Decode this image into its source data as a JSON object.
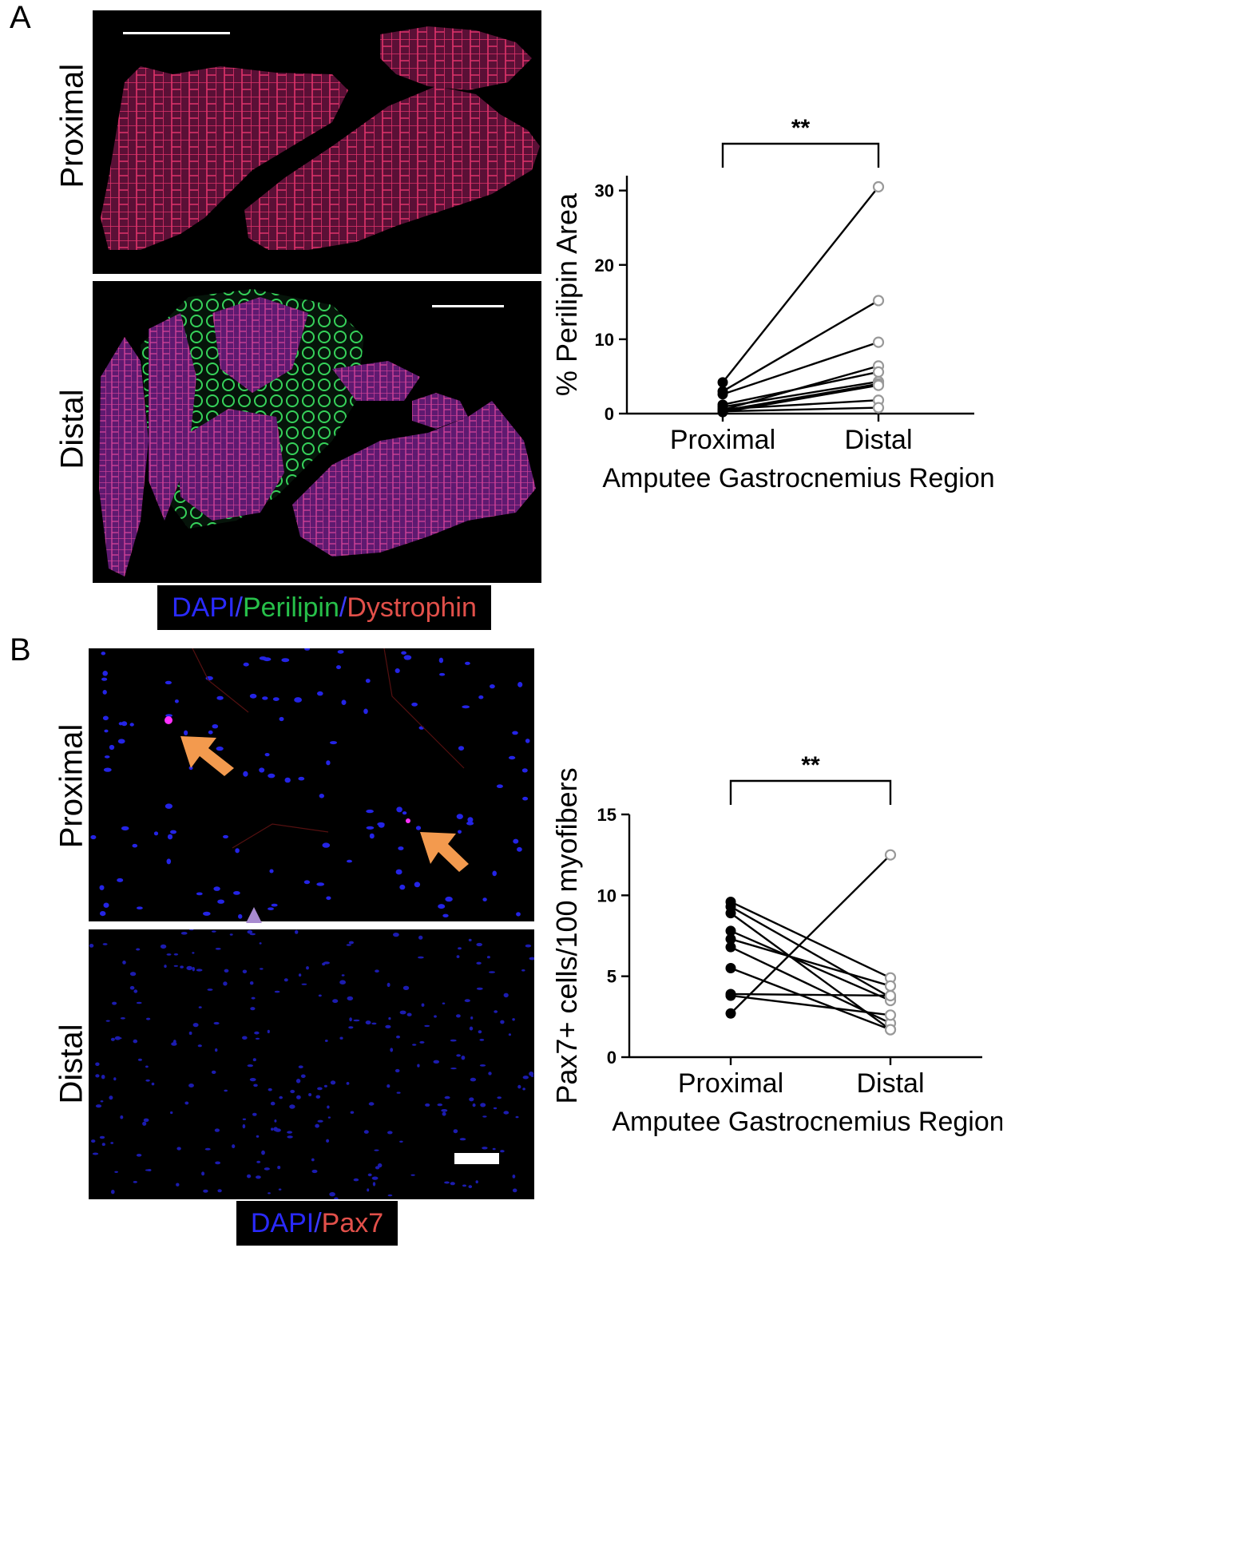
{
  "panels": {
    "a": {
      "letter": "A",
      "rows": [
        "Proximal",
        "Distal"
      ],
      "legend": [
        {
          "text": "DAPI",
          "color": "#2a2aff"
        },
        {
          "text": "/",
          "color": "#3b3bff"
        },
        {
          "text": "Perilipin",
          "color": "#27c04a"
        },
        {
          "text": "/",
          "color": "#3b3bff"
        },
        {
          "text": "Dystrophin",
          "color": "#e2504a"
        }
      ]
    },
    "b": {
      "letter": "B",
      "rows": [
        "Proximal",
        "Distal"
      ],
      "legend": [
        {
          "text": "DAPI",
          "color": "#2a2aff"
        },
        {
          "text": "/",
          "color": "#3b3bff"
        },
        {
          "text": "Pax7",
          "color": "#e2504a"
        }
      ]
    }
  },
  "chart_data": [
    {
      "type": "line",
      "ylabel": "% Perilipin Area",
      "xlabel": "Amputee Gastrocnemius Region",
      "categories": [
        "Proximal",
        "Distal"
      ],
      "ylim": [
        0,
        32
      ],
      "yticks": [
        "0",
        "10",
        "20",
        "30"
      ],
      "significance": "**",
      "proximal_marker": "filled",
      "distal_marker": "open",
      "pairs": [
        [
          4.2,
          30.5
        ],
        [
          3.0,
          15.2
        ],
        [
          2.6,
          9.6
        ],
        [
          0.5,
          6.4
        ],
        [
          1.2,
          5.6
        ],
        [
          0.9,
          4.3
        ],
        [
          0.4,
          4.0
        ],
        [
          0.2,
          3.8
        ],
        [
          0.6,
          1.8
        ],
        [
          0.3,
          0.8
        ]
      ]
    },
    {
      "type": "line",
      "ylabel": "Pax7+ cells/100 myofibers",
      "xlabel": "Amputee Gastrocnemius Region",
      "categories": [
        "Proximal",
        "Distal"
      ],
      "ylim": [
        0,
        15
      ],
      "yticks": [
        "0",
        "5",
        "10",
        "15"
      ],
      "significance": "**",
      "proximal_marker": "filled",
      "distal_marker": "open",
      "pairs": [
        [
          2.7,
          12.5
        ],
        [
          9.6,
          4.9
        ],
        [
          9.3,
          3.7
        ],
        [
          8.9,
          1.7
        ],
        [
          7.8,
          3.5
        ],
        [
          7.3,
          4.4
        ],
        [
          6.8,
          2.1
        ],
        [
          5.5,
          1.7
        ],
        [
          3.9,
          3.8
        ],
        [
          3.8,
          2.6
        ]
      ]
    }
  ]
}
